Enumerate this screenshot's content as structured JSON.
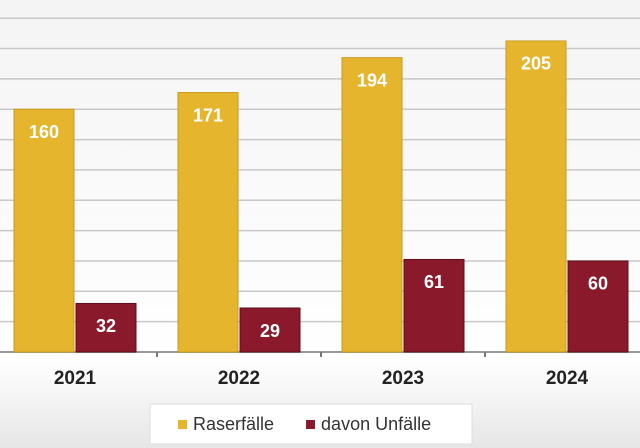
{
  "chart_data": {
    "type": "bar",
    "categories": [
      "2021",
      "2022",
      "2023",
      "2024"
    ],
    "series": [
      {
        "name": "Raserfälle",
        "color": "#e5b52e",
        "values": [
          160,
          171,
          194,
          205
        ]
      },
      {
        "name": "davon Unfälle",
        "color": "#8a1a2b",
        "values": [
          32,
          29,
          61,
          60
        ]
      }
    ],
    "ylim": [
      0,
      232
    ],
    "yticks": [
      0,
      20,
      40,
      60,
      80,
      100,
      120,
      140,
      160,
      180,
      200,
      220
    ],
    "grid": true,
    "legend": "bottom"
  }
}
